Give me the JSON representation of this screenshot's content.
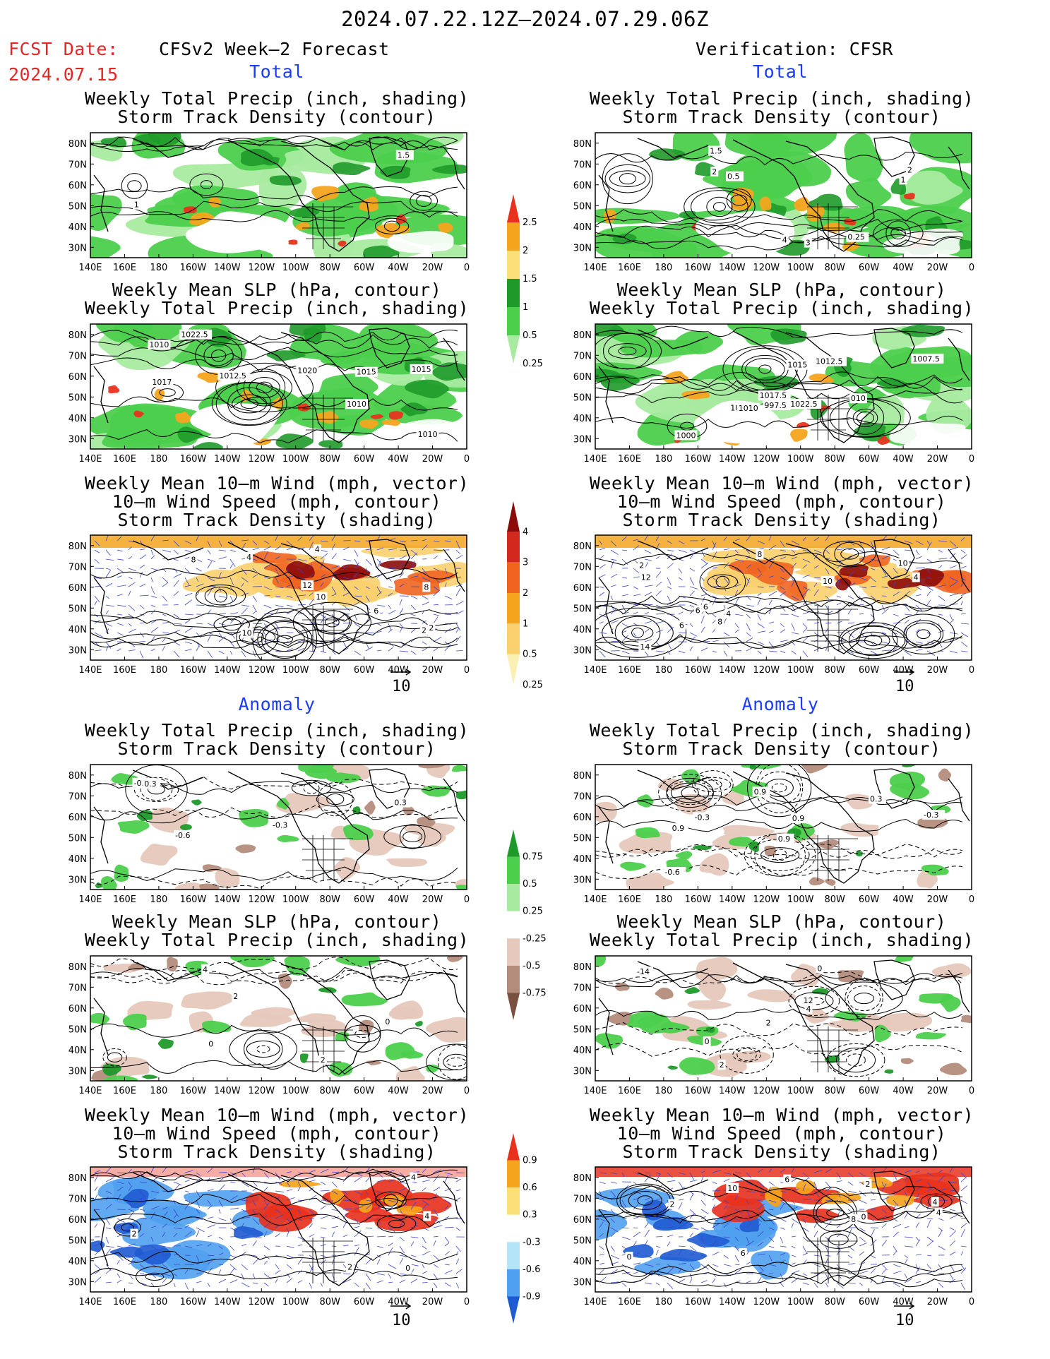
{
  "header": {
    "date_range": "2024.07.22.12Z–2024.07.29.06Z",
    "fcst_label": "FCST Date:",
    "fcst_date": "2024.07.15",
    "left_title": "CFSv2 Week–2 Forecast",
    "right_title": "Verification: CFSR"
  },
  "sections": {
    "total": "Total",
    "anomaly": "Anomaly"
  },
  "titles": {
    "precip_storm": [
      "Weekly Total Precip (inch, shading)",
      "Storm Track Density (contour)"
    ],
    "slp_precip": [
      "Weekly Mean SLP (hPa, contour)",
      "Weekly Total Precip (inch, shading)"
    ],
    "wind_storm": [
      "Weekly Mean 10–m Wind (mph, vector)",
      "10–m Wind Speed (mph, contour)",
      "Storm Track Density (shading)"
    ]
  },
  "axes": {
    "lat_labels": [
      "80N",
      "70N",
      "60N",
      "50N",
      "40N",
      "30N"
    ],
    "lon_labels": [
      "140E",
      "160E",
      "180",
      "160W",
      "140W",
      "120W",
      "100W",
      "80W",
      "60W",
      "40W",
      "20W",
      "0"
    ]
  },
  "vector_ref": "10",
  "colorbars": {
    "total_precip": {
      "labels": [
        "2.5",
        "2",
        "1.5",
        "1",
        "0.5",
        "0.25"
      ],
      "colors": [
        "#e8321e",
        "#f5a41e",
        "#fbe07a",
        "#1f9a2a",
        "#4ccf4c",
        "#a8eba0"
      ]
    },
    "total_storm": {
      "labels": [
        "4",
        "3",
        "2",
        "1",
        "0.5",
        "0.25"
      ],
      "colors": [
        "#8c0a0a",
        "#d2281e",
        "#f06420",
        "#f5a41e",
        "#fbd06e",
        "#fbf0b4"
      ]
    },
    "anom_precip": {
      "labels": [
        "0.75",
        "0.5",
        "0.25",
        "-0.25",
        "-0.5",
        "-0.75"
      ],
      "colors": [
        "#1f9a2a",
        "#4ccf4c",
        "#a8eba0",
        "#ffffff",
        "#e6c8bc",
        "#b48c7c",
        "#7a5040"
      ]
    },
    "anom_storm": {
      "labels": [
        "0.9",
        "0.6",
        "0.3",
        "-0.3",
        "-0.6",
        "-0.9"
      ],
      "colors": [
        "#e8321e",
        "#f5a41e",
        "#fbe07a",
        "#ffffff",
        "#b4e4f8",
        "#50a0f0",
        "#1e5ad2"
      ]
    }
  },
  "panels": [
    {
      "id": "fc-total-precip",
      "title": "precip_storm",
      "style": "precip",
      "labels": [
        "1",
        "1.5"
      ]
    },
    {
      "id": "ver-total-precip",
      "title": "precip_storm",
      "style": "precip",
      "labels": [
        "0.5",
        "2",
        "1",
        "3",
        "4",
        "0.25",
        "1.5",
        "2"
      ]
    },
    {
      "id": "fc-total-slp",
      "title": "slp_precip",
      "style": "precip",
      "labels": [
        "1010",
        "1010",
        "1015",
        "1017",
        "1020",
        "1022.5",
        "1010",
        "1012.5",
        "1015"
      ]
    },
    {
      "id": "ver-total-slp",
      "title": "slp_precip",
      "style": "precip",
      "labels": [
        "1015",
        "1007.5",
        "1010",
        "997.5",
        "1000",
        "1017.5",
        "010",
        "1012.5",
        "1015",
        "1022.5"
      ]
    },
    {
      "id": "fc-total-wind",
      "title": "wind_storm",
      "style": "storm",
      "labels": [
        "4",
        "2",
        "2",
        "4",
        "10",
        "8",
        "10",
        "8",
        "6",
        "12"
      ]
    },
    {
      "id": "ver-total-wind",
      "title": "wind_storm",
      "style": "storm",
      "labels": [
        "8",
        "4",
        "6",
        "2",
        "10",
        "6",
        "6",
        "4",
        "12",
        "14",
        "10",
        "8"
      ]
    },
    {
      "id": "fc-anom-precip",
      "title": "precip_storm",
      "style": "anom-precip",
      "labels": [
        "0.3",
        "-0.6",
        "-0.3",
        "0.3",
        "-0.3"
      ]
    },
    {
      "id": "ver-anom-precip",
      "title": "precip_storm",
      "style": "anom-precip",
      "labels": [
        "0.9",
        "0.3",
        "-0.6",
        "-0.3",
        "0.9",
        "0.9",
        "0.9",
        "-0.3"
      ]
    },
    {
      "id": "fc-anom-slp",
      "title": "slp_precip",
      "style": "anom-precip",
      "labels": [
        "2",
        "0",
        "4",
        "2",
        "0"
      ]
    },
    {
      "id": "ver-anom-slp",
      "title": "slp_precip",
      "style": "anom-precip",
      "labels": [
        "4",
        "12",
        "0",
        "-14",
        "2",
        "0",
        "2"
      ]
    },
    {
      "id": "fc-anom-wind",
      "title": "wind_storm",
      "style": "anom-storm",
      "labels": [
        "4",
        "2",
        "2",
        "4",
        "0"
      ]
    },
    {
      "id": "ver-anom-wind",
      "title": "wind_storm",
      "style": "anom-storm",
      "labels": [
        "6",
        "2",
        "2",
        "4",
        "0",
        "6",
        "10",
        "8",
        "4",
        "0"
      ]
    }
  ]
}
